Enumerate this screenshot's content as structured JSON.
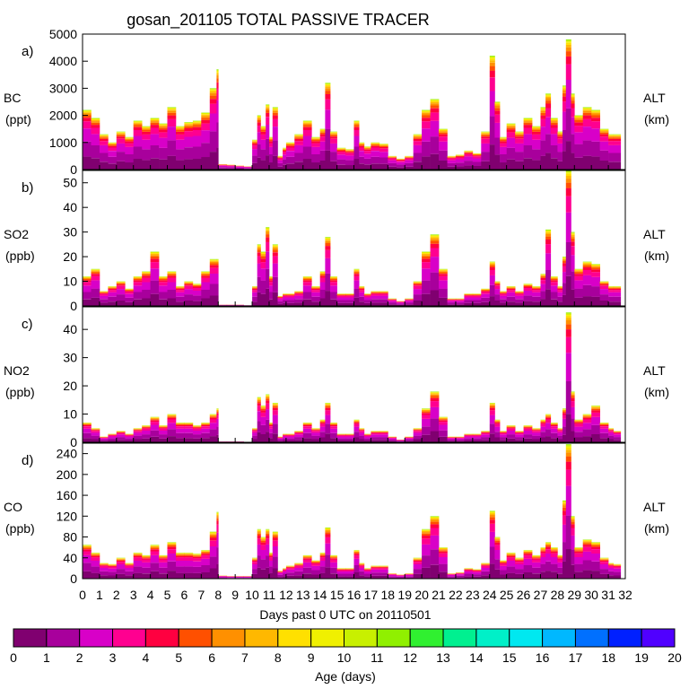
{
  "title": "gosan_201105 TOTAL PASSIVE TRACER",
  "xlabel": "Days past 0 UTC on 20110501",
  "right_label": {
    "line1": "ALT",
    "line2": "(km)"
  },
  "colorbar": {
    "label": "Age (days)",
    "ticks": [
      "0",
      "1",
      "2",
      "3",
      "4",
      "5",
      "6",
      "7",
      "8",
      "9",
      "10",
      "11",
      "12",
      "13",
      "14",
      "15",
      "16",
      "17",
      "18",
      "19",
      "20"
    ],
    "colors": [
      "#800070",
      "#a8009c",
      "#d800c8",
      "#ff0090",
      "#ff0040",
      "#ff5000",
      "#ff9000",
      "#ffb800",
      "#ffe000",
      "#f0f000",
      "#c8f000",
      "#90f000",
      "#30f030",
      "#00f090",
      "#00f0c8",
      "#00e8f0",
      "#00b8ff",
      "#0070ff",
      "#0020ff",
      "#5000ff"
    ]
  },
  "chart_data": [
    {
      "panel": "a)",
      "type": "area",
      "ylabel": "BC",
      "yunit": "(ppt)",
      "ylim": [
        0,
        5000
      ],
      "yticks": [
        "0",
        "1000",
        "2000",
        "3000",
        "4000",
        "5000"
      ],
      "xlim": [
        0,
        32
      ],
      "xticks": [
        "0",
        "1",
        "2",
        "3",
        "4",
        "5",
        "6",
        "7",
        "8",
        "9",
        "10",
        "11",
        "12",
        "13",
        "14",
        "15",
        "16",
        "17",
        "18",
        "19",
        "20",
        "21",
        "22",
        "23",
        "24",
        "25",
        "26",
        "27",
        "28",
        "29",
        "30",
        "31",
        "32"
      ],
      "x": [
        0,
        0.5,
        1,
        1.5,
        2,
        2.5,
        3,
        3.5,
        4,
        4.5,
        5,
        5.5,
        6,
        6.5,
        7,
        7.5,
        7.9,
        8,
        8.5,
        9,
        9.5,
        10,
        10.3,
        10.5,
        10.8,
        11,
        11.2,
        11.5,
        11.8,
        12,
        12.5,
        13,
        13.5,
        14,
        14.3,
        14.6,
        15,
        15.5,
        16,
        16.3,
        16.6,
        17,
        17.5,
        18,
        18.5,
        19,
        19.5,
        20,
        20.5,
        21,
        21.5,
        22,
        22.5,
        23,
        23.5,
        24,
        24.3,
        24.6,
        25,
        25.5,
        26,
        26.5,
        27,
        27.3,
        27.6,
        28,
        28.3,
        28.5,
        28.8,
        29,
        29.5,
        30,
        30.5,
        31,
        31.3
      ],
      "values": [
        2200,
        1900,
        1300,
        1000,
        1400,
        1200,
        1800,
        1600,
        1900,
        1700,
        2300,
        1600,
        1750,
        1800,
        2100,
        3000,
        3700,
        200,
        180,
        150,
        120,
        1100,
        2000,
        1600,
        2400,
        1200,
        2300,
        500,
        800,
        1000,
        1300,
        1800,
        1200,
        1500,
        3200,
        1400,
        800,
        750,
        1800,
        1000,
        850,
        1000,
        950,
        500,
        400,
        500,
        1300,
        2200,
        2600,
        1500,
        500,
        550,
        700,
        600,
        1400,
        4200,
        2500,
        1200,
        1700,
        1400,
        1900,
        1600,
        2300,
        2800,
        1900,
        1400,
        3100,
        4800,
        2800,
        2000,
        2300,
        2200,
        1500,
        1300,
        1300
      ]
    },
    {
      "panel": "b)",
      "type": "area",
      "ylabel": "SO2",
      "yunit": "(ppb)",
      "ylim": [
        0,
        55
      ],
      "yticks": [
        "0",
        "10",
        "20",
        "30",
        "40",
        "50"
      ],
      "x": [
        0,
        0.5,
        1,
        1.5,
        2,
        2.5,
        3,
        3.5,
        4,
        4.5,
        5,
        5.5,
        6,
        6.5,
        7,
        7.5,
        7.9,
        8,
        8.5,
        9,
        9.5,
        10,
        10.3,
        10.5,
        10.8,
        11,
        11.2,
        11.5,
        11.8,
        12,
        12.5,
        13,
        13.5,
        14,
        14.3,
        14.6,
        15,
        15.5,
        16,
        16.3,
        16.6,
        17,
        17.5,
        18,
        18.5,
        19,
        19.5,
        20,
        20.5,
        21,
        21.5,
        22,
        22.5,
        23,
        23.5,
        24,
        24.3,
        24.6,
        25,
        25.5,
        26,
        26.5,
        27,
        27.3,
        27.6,
        28,
        28.3,
        28.5,
        28.8,
        29,
        29.5,
        30,
        30.5,
        31,
        31.3
      ],
      "values": [
        12,
        15,
        6,
        8,
        10,
        7,
        12,
        14,
        22,
        12,
        14,
        8,
        10,
        9,
        14,
        19,
        19,
        0.5,
        0.5,
        0.5,
        0.3,
        8,
        25,
        22,
        32,
        12,
        25,
        4,
        5,
        5,
        6,
        12,
        8,
        14,
        28,
        12,
        5,
        5,
        15,
        8,
        5,
        6,
        6,
        3,
        2,
        3,
        10,
        22,
        29,
        15,
        3,
        3,
        5,
        5,
        7,
        18,
        10,
        6,
        8,
        6,
        9,
        8,
        13,
        31,
        12,
        8,
        20,
        55,
        30,
        15,
        18,
        17,
        10,
        8,
        8
      ]
    },
    {
      "panel": "c)",
      "type": "area",
      "ylabel": "NO2",
      "yunit": "(ppb)",
      "ylim": [
        0,
        48
      ],
      "yticks": [
        "0",
        "10",
        "20",
        "30",
        "40"
      ],
      "x": [
        0,
        0.5,
        1,
        1.5,
        2,
        2.5,
        3,
        3.5,
        4,
        4.5,
        5,
        5.5,
        6,
        6.5,
        7,
        7.5,
        7.9,
        8,
        8.5,
        9,
        9.5,
        10,
        10.3,
        10.5,
        10.8,
        11,
        11.2,
        11.5,
        11.8,
        12,
        12.5,
        13,
        13.5,
        14,
        14.3,
        14.6,
        15,
        15.5,
        16,
        16.3,
        16.6,
        17,
        17.5,
        18,
        18.5,
        19,
        19.5,
        20,
        20.5,
        21,
        21.5,
        22,
        22.5,
        23,
        23.5,
        24,
        24.3,
        24.6,
        25,
        25.5,
        26,
        26.5,
        27,
        27.3,
        27.6,
        28,
        28.3,
        28.5,
        28.8,
        29,
        29.5,
        30,
        30.5,
        31,
        31.3
      ],
      "values": [
        7,
        5,
        2,
        3,
        4,
        3,
        5,
        6,
        9,
        6,
        10,
        7,
        7,
        6,
        7,
        10,
        12,
        0.3,
        0.3,
        0.3,
        0.2,
        5,
        16,
        13,
        17,
        7,
        14,
        2,
        3,
        3,
        4,
        7,
        5,
        8,
        14,
        7,
        3,
        3,
        8,
        5,
        3,
        4,
        4,
        2,
        1,
        2,
        5,
        12,
        18,
        9,
        2,
        2,
        3,
        3,
        4,
        14,
        8,
        4,
        6,
        4,
        6,
        5,
        8,
        10,
        7,
        5,
        12,
        46,
        18,
        8,
        10,
        13,
        7,
        5,
        4
      ]
    },
    {
      "panel": "d)",
      "type": "area",
      "ylabel": "CO",
      "yunit": "(ppb)",
      "ylim": [
        0,
        260
      ],
      "yticks": [
        "0",
        "40",
        "80",
        "120",
        "160",
        "200",
        "240"
      ],
      "x": [
        0,
        0.5,
        1,
        1.5,
        2,
        2.5,
        3,
        3.5,
        4,
        4.5,
        5,
        5.5,
        6,
        6.5,
        7,
        7.5,
        7.9,
        8,
        8.5,
        9,
        9.5,
        10,
        10.3,
        10.5,
        10.8,
        11,
        11.2,
        11.5,
        11.8,
        12,
        12.5,
        13,
        13.5,
        14,
        14.3,
        14.6,
        15,
        15.5,
        16,
        16.3,
        16.6,
        17,
        17.5,
        18,
        18.5,
        19,
        19.5,
        20,
        20.5,
        21,
        21.5,
        22,
        22.5,
        23,
        23.5,
        24,
        24.3,
        24.6,
        25,
        25.5,
        26,
        26.5,
        27,
        27.3,
        27.6,
        28,
        28.3,
        28.5,
        28.8,
        29,
        29.5,
        30,
        30.5,
        31,
        31.3
      ],
      "values": [
        65,
        50,
        30,
        28,
        40,
        30,
        50,
        45,
        65,
        45,
        70,
        50,
        50,
        48,
        55,
        90,
        128,
        6,
        5,
        5,
        5,
        40,
        95,
        80,
        95,
        50,
        90,
        15,
        20,
        25,
        30,
        45,
        35,
        50,
        98,
        45,
        20,
        20,
        55,
        30,
        20,
        25,
        25,
        10,
        8,
        10,
        40,
        95,
        120,
        60,
        10,
        12,
        20,
        18,
        30,
        130,
        80,
        35,
        50,
        40,
        55,
        45,
        60,
        70,
        60,
        45,
        150,
        258,
        120,
        60,
        75,
        70,
        40,
        30,
        28
      ]
    }
  ]
}
